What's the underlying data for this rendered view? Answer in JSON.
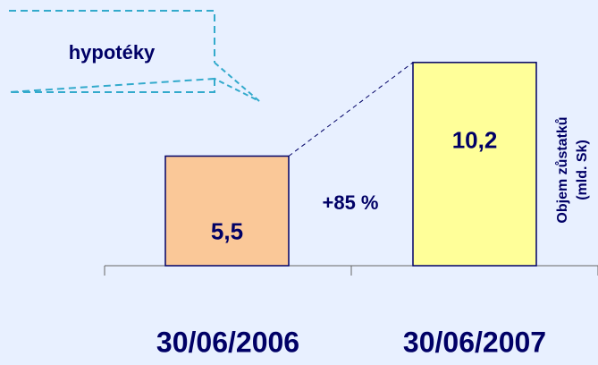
{
  "chart_data": {
    "type": "bar",
    "callout": "hypotéky",
    "categories": [
      "30/06/2006",
      "30/06/2007"
    ],
    "values": [
      5.5,
      10.2
    ],
    "value_labels": [
      "5,5",
      "10,2"
    ],
    "colors": [
      "#FAC898",
      "#FFFF99"
    ],
    "annotation": "+85 %",
    "y_label": [
      "Objem zůstatků",
      "(mld. Sk)"
    ],
    "ylim": [
      0,
      11
    ]
  }
}
